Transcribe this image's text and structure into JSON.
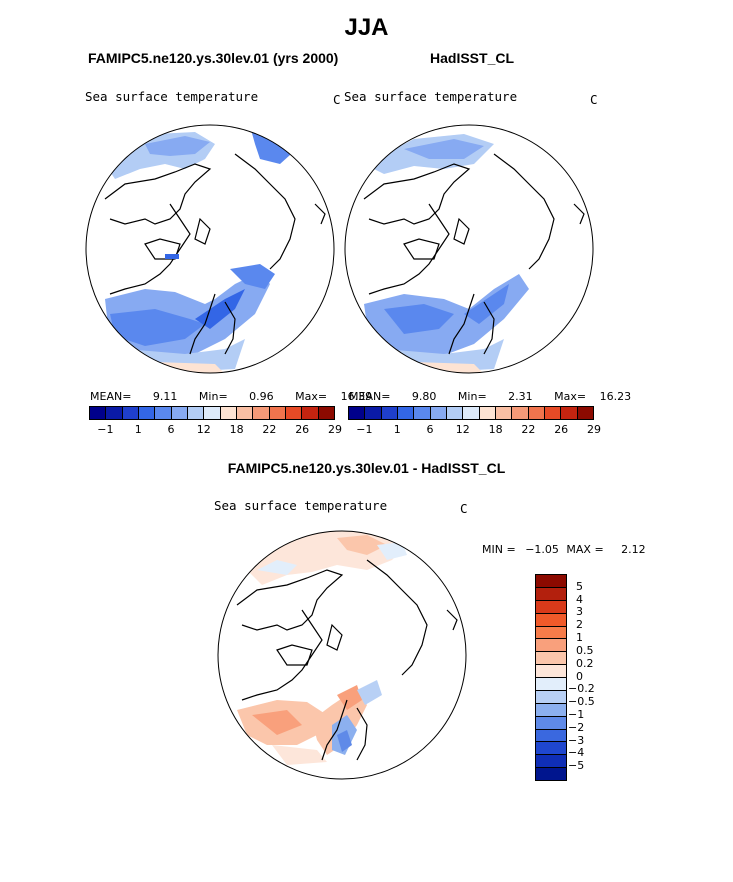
{
  "figure": {
    "season": "JJA",
    "left_panel_title": "FAMIPC5.ne120.ys.30lev.01 (yrs 2000)",
    "right_panel_title": "HadISST_CL",
    "diff_title": "FAMIPC5.ne120.ys.30lev.01 - HadISST_CL"
  },
  "panels": {
    "left": {
      "variable": "Sea surface temperature",
      "units": "C",
      "mean_label": "MEAN=",
      "mean": "9.11",
      "min_label": "Min=",
      "min": "0.96",
      "max_label": "Max=",
      "max": "16.39"
    },
    "right": {
      "variable": "Sea surface temperature",
      "units": "C",
      "mean_label": "MEAN=",
      "mean": "9.80",
      "min_label": "Min=",
      "min": "2.31",
      "max_label": "Max=",
      "max": "16.23"
    },
    "diff": {
      "variable": "Sea surface temperature",
      "units": "C",
      "min_label": "MIN =",
      "min": "−1.05",
      "max_label": "MAX =",
      "max": "2.12"
    }
  },
  "colorbars": {
    "abs_colors": [
      "#00008b",
      "#0a1aa6",
      "#1f3fcc",
      "#3366e6",
      "#5a88ee",
      "#87aaf2",
      "#b3cdf5",
      "#ddeafa",
      "#fde3d3",
      "#f9bfa4",
      "#f59a78",
      "#f0744d",
      "#e64a26",
      "#c42410",
      "#8c0a00"
    ],
    "abs_ticks": [
      "−1",
      "1",
      "6",
      "12",
      "18",
      "22",
      "26",
      "29"
    ],
    "diff_colors": [
      "#8c0a00",
      "#b3200d",
      "#d93a1a",
      "#f05a2a",
      "#f77c4a",
      "#f9a07c",
      "#fbc6ab",
      "#fde6da",
      "#e2eefb",
      "#b8d0f5",
      "#8cb0ef",
      "#5f8ae8",
      "#3a68df",
      "#1f47cf",
      "#0f2eb6",
      "#00158e"
    ],
    "diff_labels": [
      "5",
      "4",
      "3",
      "2",
      "1",
      "0.5",
      "0.2",
      "0",
      "−0.2",
      "−0.5",
      "−1",
      "−2",
      "−3",
      "−4",
      "−5"
    ]
  }
}
